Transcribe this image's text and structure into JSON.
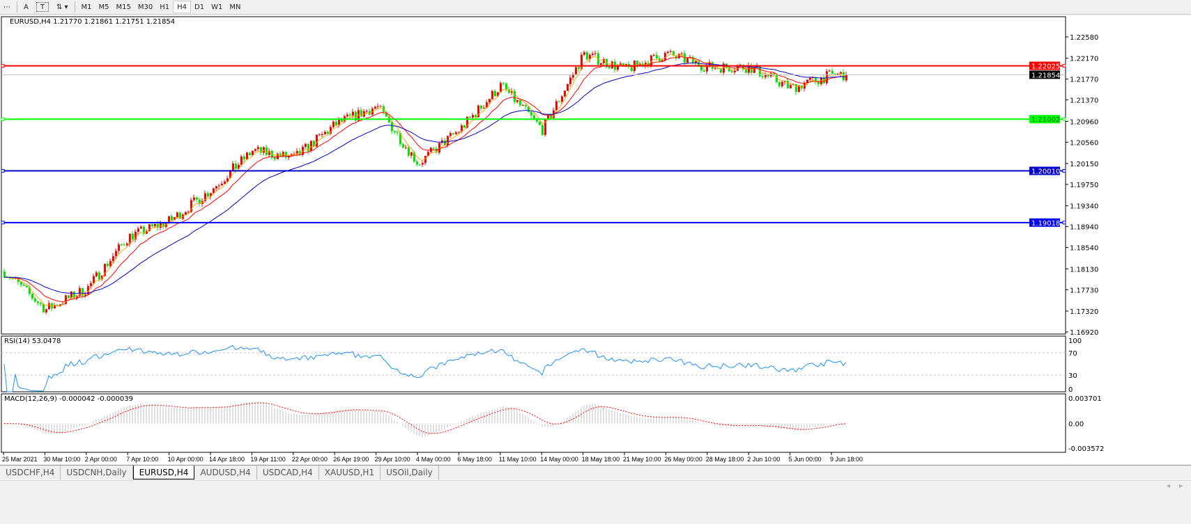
{
  "toolbar": {
    "tools": [
      {
        "label": "A",
        "icon": "text-icon"
      },
      {
        "label": "T",
        "icon": "text-label-icon"
      },
      {
        "label": "",
        "icon": "arrows-icon"
      }
    ],
    "timeframes": [
      "M1",
      "M5",
      "M15",
      "M30",
      "H1",
      "H4",
      "D1",
      "W1",
      "MN"
    ],
    "active_timeframe": "H4"
  },
  "chart": {
    "title": "EURUSD,H4",
    "ohlc": "1.21770 1.21861 1.21751 1.21854",
    "rsi_label": "RSI(14) 53.0478",
    "macd_label": "MACD(12,26,9) -0.000042 -0.000039"
  },
  "tabs": [
    {
      "label": "USDCHF,H4"
    },
    {
      "label": "USDCNH,Daily"
    },
    {
      "label": "EURUSD,H4",
      "active": true
    },
    {
      "label": "AUDUSD,H4"
    },
    {
      "label": "USDCAD,H4"
    },
    {
      "label": "XAUUSD,H1"
    },
    {
      "label": "USOil,Daily"
    }
  ],
  "colors": {
    "bull": "#ff0000",
    "bear": "#00e600",
    "ma_fast": "#ffa500",
    "ma_mid": "#ff0000",
    "ma_slow": "#0000c8",
    "rsi": "#1e90ff",
    "macd_hist": "#c0c0c0",
    "macd_signal": "#ff0000"
  },
  "chart_data": {
    "type": "candlestick",
    "symbol": "EURUSD",
    "timeframe": "H4",
    "price_ticks": [
      "1.22580",
      "1.22170",
      "1.21770",
      "1.21370",
      "1.20960",
      "1.20560",
      "1.20150",
      "1.19750",
      "1.19340",
      "1.18940",
      "1.18540",
      "1.18130",
      "1.17730",
      "1.17320",
      "1.16920"
    ],
    "ylim": [
      1.1692,
      1.2258
    ],
    "x_ticks": [
      "25 Mar 2021",
      "30 Mar 10:00",
      "2 Apr 00:00",
      "7 Apr 10:00",
      "10 Apr 00:00",
      "14 Apr 18:00",
      "19 Apr 11:00",
      "22 Apr 00:00",
      "26 Apr 19:00",
      "29 Apr 10:00",
      "4 May 00:00",
      "6 May 18:00",
      "11 May 10:00",
      "14 May 00:00",
      "18 May 18:00",
      "21 May 10:00",
      "26 May 00:00",
      "28 May 18:00",
      "2 Jun 10:00",
      "5 Jun 00:00",
      "9 Jun 18:00"
    ],
    "approx_close_at_ticks": [
      1.1808,
      1.1735,
      1.1775,
      1.1875,
      1.1905,
      1.1965,
      1.204,
      1.2025,
      1.209,
      1.2125,
      1.2015,
      1.208,
      1.2165,
      1.208,
      1.2225,
      1.2195,
      1.2225,
      1.22,
      1.22,
      1.216,
      1.2185
    ],
    "last_close": 1.21854,
    "horizontal_lines": [
      {
        "price": "1.22025",
        "color": "#ff0000"
      },
      {
        "price": "1.21002",
        "color": "#00ff00"
      },
      {
        "price": "1.20010",
        "color": "#0000c8"
      },
      {
        "price": "1.19018",
        "color": "#0000ff"
      }
    ],
    "current_price_label": "1.21854",
    "rsi": {
      "period": 14,
      "value": 53.0478,
      "levels": [
        "100",
        "70",
        "30",
        "0"
      ]
    },
    "macd": {
      "params": "12,26,9",
      "main": -4.2e-05,
      "signal": -3.9e-05,
      "ticks": [
        "0.003701",
        "0.00",
        "-0.003572"
      ]
    }
  }
}
